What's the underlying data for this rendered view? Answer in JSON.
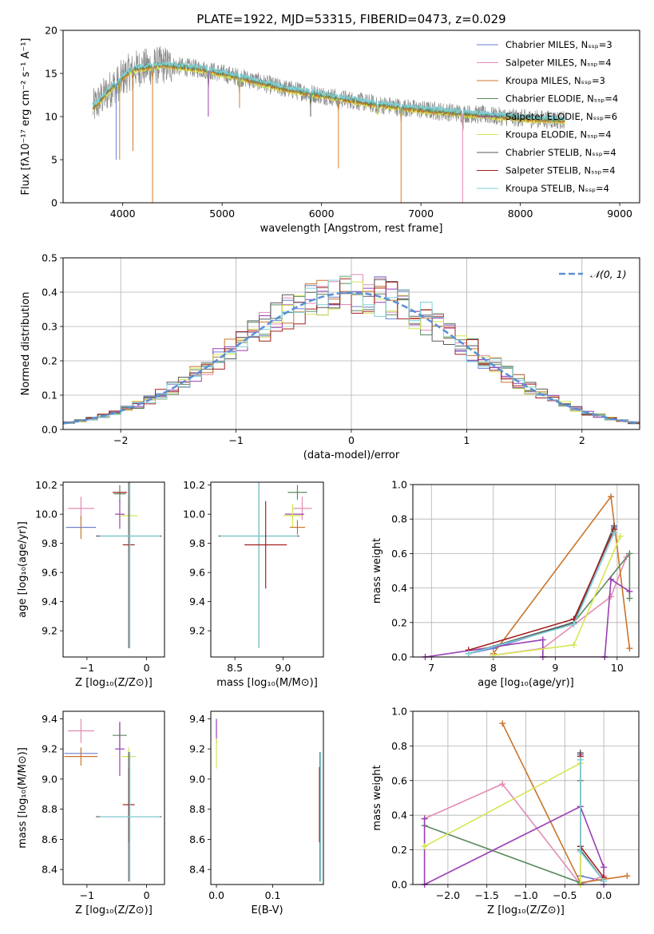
{
  "title": "PLATE=1922, MJD=53315, FIBERID=0473, z=0.029",
  "colors": {
    "chabrier_miles": "#6a7fd0",
    "salpeter_miles": "#e38bb6",
    "kroupa_miles": "#c9742a",
    "chabrier_elodie": "#5b8a5f",
    "salpeter_elodie": "#9a3fb4",
    "kroupa_elodie": "#d6e650",
    "chabrier_stelib": "#5a5a5a",
    "salpeter_stelib": "#a32020",
    "kroupa_stelib": "#7fd0d8",
    "normal": "#5b8fd6"
  },
  "chart_data": [
    {
      "type": "line",
      "panel": "spectrum",
      "title": "PLATE=1922, MJD=53315, FIBERID=0473, z=0.029",
      "xlabel": "wavelength [Angstrom, rest frame]",
      "ylabel": "Flux [fλ10⁻¹⁷ erg cm⁻² s⁻¹ A⁻¹]",
      "xlim": [
        3400,
        9200
      ],
      "ylim": [
        0,
        20
      ],
      "xticks": [
        "4000",
        "5000",
        "6000",
        "7000",
        "8000",
        "9000"
      ],
      "yticks": [
        "0",
        "5",
        "10",
        "15",
        "20"
      ],
      "continuum": [
        [
          3700,
          11.0
        ],
        [
          3900,
          13.5
        ],
        [
          4100,
          15.5
        ],
        [
          4400,
          16.0
        ],
        [
          4800,
          15.5
        ],
        [
          5200,
          14.5
        ],
        [
          5600,
          13.3
        ],
        [
          6000,
          12.5
        ],
        [
          6500,
          11.5
        ],
        [
          7000,
          10.8
        ],
        [
          7500,
          10.3
        ],
        [
          8000,
          9.8
        ],
        [
          8400,
          9.6
        ]
      ],
      "absorption_lines": [
        [
          3934,
          5
        ],
        [
          3969,
          5
        ],
        [
          4102,
          6
        ],
        [
          4300,
          0
        ],
        [
          4861,
          10
        ],
        [
          5175,
          11
        ],
        [
          5890,
          10
        ],
        [
          6170,
          4
        ],
        [
          6563,
          11
        ],
        [
          6800,
          0
        ],
        [
          7420,
          0
        ]
      ],
      "legend": [
        {
          "label": "Chabrier MILES, Nₛₛₚ=3"
        },
        {
          "label": "Salpeter MILES, Nₛₛₚ=4"
        },
        {
          "label": "Kroupa MILES, Nₛₛₚ=3"
        },
        {
          "label": "Chabrier ELODIE, Nₛₛₚ=4"
        },
        {
          "label": "Salpeter ELODIE, Nₛₛₚ=6"
        },
        {
          "label": "Kroupa ELODIE, Nₛₛₚ=4"
        },
        {
          "label": "Chabrier STELIB, Nₛₛₚ=4"
        },
        {
          "label": "Salpeter STELIB, Nₛₛₚ=4"
        },
        {
          "label": "Kroupa STELIB, Nₛₛₚ=4"
        }
      ],
      "legend_position": "top-right"
    },
    {
      "type": "histogram",
      "panel": "residuals",
      "xlabel": "(data-model)/error",
      "ylabel": "Normed distribution",
      "xlim": [
        -2.5,
        2.5
      ],
      "ylim": [
        0,
        0.5
      ],
      "xticks": [
        "−2",
        "−1",
        "0",
        "1",
        "2"
      ],
      "yticks": [
        "0.0",
        "0.1",
        "0.2",
        "0.3",
        "0.4",
        "0.5"
      ],
      "bin_width": 0.1,
      "legend": [
        {
          "label": "𝒩(0, 1)"
        }
      ],
      "legend_position": "top-right",
      "grid": true
    },
    {
      "type": "errorbar",
      "panel": "age-vs-Z",
      "xlabel": "Z [log₁₀(Z/Z⊙)]",
      "ylabel": "age  [log₁₀(age/yr)]",
      "xlim": [
        -1.4,
        0.3
      ],
      "ylim": [
        9.02,
        10.22
      ],
      "xticks": [
        "−1",
        "0"
      ],
      "yticks": [
        "9.2",
        "9.4",
        "9.6",
        "9.8",
        "10.0",
        "10.2"
      ],
      "points": [
        {
          "x": -1.1,
          "y": 10.04,
          "xerr": 0.22,
          "yerr": 0.08,
          "c": "salpeter_miles"
        },
        {
          "x": -1.1,
          "y": 9.91,
          "xerr": 0.25,
          "yerr": 0.08,
          "c": "kroupa_miles"
        },
        {
          "x": -1.1,
          "y": 9.91,
          "xerr": 0.25,
          "yerr": 0.0,
          "c": "chabrier_miles"
        },
        {
          "x": -0.45,
          "y": 10.14,
          "xerr": 0.1,
          "yerr": 0.06,
          "c": "chabrier_elodie"
        },
        {
          "x": -0.45,
          "y": 10.15,
          "xerr": 0.12,
          "yerr": 0.0,
          "c": "salpeter_stelib"
        },
        {
          "x": -0.45,
          "y": 10.0,
          "xerr": 0.08,
          "yerr": 0.1,
          "c": "salpeter_elodie"
        },
        {
          "x": -0.3,
          "y": 9.99,
          "xerr": 0.15,
          "yerr": 0.12,
          "c": "kroupa_elodie"
        },
        {
          "x": -0.3,
          "y": 9.79,
          "xerr": 0.1,
          "yerr": 0.0,
          "c": "salpeter_stelib"
        },
        {
          "x": -0.3,
          "y": 9.85,
          "xerr": 0.55,
          "yerr": 0.77,
          "c": "chabrier_stelib"
        },
        {
          "x": -0.28,
          "y": 9.85,
          "xerr": 0.5,
          "yerr": 0.77,
          "c": "kroupa_stelib"
        }
      ]
    },
    {
      "type": "errorbar",
      "panel": "age-vs-mass",
      "xlabel": "mass [log₁₀(M/M⊙)]",
      "ylabel": "",
      "xlim": [
        8.25,
        9.42
      ],
      "ylim": [
        9.02,
        10.22
      ],
      "xticks": [
        "8.5",
        "9.0"
      ],
      "yticks": [
        "9.2",
        "9.4",
        "9.6",
        "9.8",
        "10.0",
        "10.2"
      ],
      "points": [
        {
          "x": 8.75,
          "y": 9.85,
          "xerr": 0.42,
          "yerr": 0.77,
          "c": "chabrier_stelib"
        },
        {
          "x": 8.75,
          "y": 9.85,
          "xerr": 0.4,
          "yerr": 0.77,
          "c": "kroupa_stelib"
        },
        {
          "x": 8.82,
          "y": 9.79,
          "xerr": 0.22,
          "yerr": 0.3,
          "c": "salpeter_stelib"
        },
        {
          "x": 9.15,
          "y": 10.15,
          "xerr": 0.1,
          "yerr": 0.05,
          "c": "chabrier_elodie"
        },
        {
          "x": 9.2,
          "y": 10.04,
          "xerr": 0.1,
          "yerr": 0.08,
          "c": "salpeter_miles"
        },
        {
          "x": 9.12,
          "y": 10.0,
          "xerr": 0.1,
          "yerr": 0.0,
          "c": "salpeter_elodie"
        },
        {
          "x": 9.1,
          "y": 9.99,
          "xerr": 0.1,
          "yerr": 0.08,
          "c": "kroupa_elodie"
        },
        {
          "x": 9.15,
          "y": 9.91,
          "xerr": 0.08,
          "yerr": 0.05,
          "c": "kroupa_miles"
        }
      ]
    },
    {
      "type": "line",
      "panel": "weight-vs-age",
      "xlabel": "age  [log₁₀(age/yr)]",
      "ylabel": "mass weight",
      "xlim": [
        6.7,
        10.35
      ],
      "ylim": [
        0,
        1
      ],
      "xticks": [
        "7",
        "8",
        "9",
        "10"
      ],
      "yticks": [
        "0.0",
        "0.2",
        "0.4",
        "0.6",
        "0.8",
        "1.0"
      ],
      "grid": true,
      "series": [
        {
          "c": "chabrier_miles",
          "x": [
            7.6,
            8.0,
            9.3,
            9.95
          ],
          "y": [
            0.02,
            0.05,
            0.2,
            0.75
          ]
        },
        {
          "c": "salpeter_miles",
          "x": [
            8.0,
            8.8,
            9.9,
            10.15
          ],
          "y": [
            0.01,
            0.05,
            0.35,
            0.58
          ]
        },
        {
          "c": "kroupa_miles",
          "x": [
            8.0,
            9.9,
            10.2
          ],
          "y": [
            0.02,
            0.93,
            0.05
          ]
        },
        {
          "c": "chabrier_elodie",
          "x": [
            7.6,
            9.3,
            10.2,
            10.2
          ],
          "y": [
            0.02,
            0.2,
            0.6,
            0.34
          ]
        },
        {
          "c": "salpeter_elodie",
          "x": [
            6.9,
            8.8,
            8.8,
            9.8,
            9.9,
            10.2
          ],
          "y": [
            0.0,
            0.1,
            0.0,
            0.0,
            0.45,
            0.38
          ]
        },
        {
          "c": "kroupa_elodie",
          "x": [
            8.0,
            9.3,
            10.05
          ],
          "y": [
            0.01,
            0.07,
            0.7
          ]
        },
        {
          "c": "chabrier_stelib",
          "x": [
            7.6,
            9.3,
            9.95
          ],
          "y": [
            0.02,
            0.2,
            0.76
          ]
        },
        {
          "c": "salpeter_stelib",
          "x": [
            7.6,
            9.3,
            9.95
          ],
          "y": [
            0.04,
            0.22,
            0.74
          ]
        },
        {
          "c": "kroupa_stelib",
          "x": [
            7.6,
            9.3,
            9.95
          ],
          "y": [
            0.02,
            0.19,
            0.72
          ]
        }
      ]
    },
    {
      "type": "errorbar",
      "panel": "mass-vs-Z",
      "xlabel": "Z [log₁₀(Z/Z⊙)]",
      "ylabel": "mass [log₁₀(M/M⊙)]",
      "xlim": [
        -1.4,
        0.3
      ],
      "ylim": [
        8.3,
        9.45
      ],
      "xticks": [
        "−1",
        "0"
      ],
      "yticks": [
        "8.4",
        "8.6",
        "8.8",
        "9.0",
        "9.2",
        "9.4"
      ],
      "points": [
        {
          "x": -1.1,
          "y": 9.32,
          "xerr": 0.22,
          "yerr": 0.08,
          "c": "salpeter_miles"
        },
        {
          "x": -1.1,
          "y": 9.17,
          "xerr": 0.28,
          "yerr": 0.0,
          "c": "chabrier_miles"
        },
        {
          "x": -1.1,
          "y": 9.15,
          "xerr": 0.28,
          "yerr": 0.06,
          "c": "kroupa_miles"
        },
        {
          "x": -0.45,
          "y": 9.29,
          "xerr": 0.12,
          "yerr": 0.08,
          "c": "chabrier_elodie"
        },
        {
          "x": -0.45,
          "y": 9.2,
          "xerr": 0.08,
          "yerr": 0.18,
          "c": "salpeter_elodie"
        },
        {
          "x": -0.3,
          "y": 9.15,
          "xerr": 0.12,
          "yerr": 0.06,
          "c": "kroupa_elodie"
        },
        {
          "x": -0.3,
          "y": 8.83,
          "xerr": 0.1,
          "yerr": 0.25,
          "c": "salpeter_stelib"
        },
        {
          "x": -0.3,
          "y": 8.75,
          "xerr": 0.55,
          "yerr": 0.43,
          "c": "chabrier_stelib"
        },
        {
          "x": -0.28,
          "y": 8.75,
          "xerr": 0.5,
          "yerr": 0.43,
          "c": "kroupa_stelib"
        }
      ]
    },
    {
      "type": "errorbar",
      "panel": "mass-vs-EBV",
      "xlabel": "E(B-V)",
      "ylabel": "",
      "xlim": [
        -0.01,
        0.19
      ],
      "ylim": [
        8.3,
        9.45
      ],
      "xticks": [
        "0.0",
        "0.1"
      ],
      "yticks": [
        "8.4",
        "8.6",
        "8.8",
        "9.0",
        "9.2",
        "9.4"
      ],
      "points": [
        {
          "x": 0.0,
          "y": 9.32,
          "xerr": 0.0,
          "yerr": 0.08,
          "c": "salpeter_elodie"
        },
        {
          "x": 0.0,
          "y": 9.17,
          "xerr": 0.0,
          "yerr": 0.1,
          "c": "kroupa_elodie"
        },
        {
          "x": 0.183,
          "y": 8.83,
          "xerr": 0.0,
          "yerr": 0.25,
          "c": "salpeter_stelib"
        },
        {
          "x": 0.184,
          "y": 8.75,
          "xerr": 0.0,
          "yerr": 0.43,
          "c": "chabrier_stelib"
        },
        {
          "x": 0.185,
          "y": 8.75,
          "xerr": 0.0,
          "yerr": 0.43,
          "c": "kroupa_stelib"
        }
      ]
    },
    {
      "type": "line",
      "panel": "weight-vs-Z",
      "xlabel": "Z [log₁₀(Z/Z⊙)]",
      "ylabel": "mass weight",
      "xlim": [
        -2.45,
        0.45
      ],
      "ylim": [
        0,
        1
      ],
      "xticks": [
        "−2.0",
        "−1.5",
        "−1.0",
        "−0.5",
        "0.0"
      ],
      "yticks": [
        "0.0",
        "0.2",
        "0.4",
        "0.6",
        "0.8",
        "1.0"
      ],
      "grid": true,
      "series": [
        {
          "c": "chabrier_miles",
          "x": [
            -0.3,
            -0.3,
            0.0
          ],
          "y": [
            0.75,
            0.05,
            0.02
          ]
        },
        {
          "c": "salpeter_miles",
          "x": [
            -2.3,
            -1.3,
            -0.3,
            0.0
          ],
          "y": [
            0.38,
            0.58,
            0.0,
            0.05
          ]
        },
        {
          "c": "kroupa_miles",
          "x": [
            -1.3,
            -0.3,
            0.3
          ],
          "y": [
            0.93,
            0.01,
            0.05
          ]
        },
        {
          "c": "chabrier_elodie",
          "x": [
            -2.3,
            -0.3,
            -0.3
          ],
          "y": [
            0.34,
            0.01,
            0.6
          ]
        },
        {
          "c": "salpeter_elodie",
          "x": [
            -2.3,
            -2.3,
            -0.3,
            0.0,
            0.0
          ],
          "y": [
            0.38,
            0.0,
            0.45,
            0.1,
            0.0
          ]
        },
        {
          "c": "kroupa_elodie",
          "x": [
            -2.3,
            -0.3,
            -0.3
          ],
          "y": [
            0.22,
            0.7,
            0.0
          ]
        },
        {
          "c": "chabrier_stelib",
          "x": [
            -0.3,
            -0.3,
            0.0
          ],
          "y": [
            0.76,
            0.2,
            0.02
          ]
        },
        {
          "c": "salpeter_stelib",
          "x": [
            -0.3,
            -0.3,
            0.0
          ],
          "y": [
            0.74,
            0.22,
            0.04
          ]
        },
        {
          "c": "kroupa_stelib",
          "x": [
            -0.3,
            -0.3,
            0.0
          ],
          "y": [
            0.72,
            0.19,
            0.02
          ]
        }
      ]
    }
  ]
}
